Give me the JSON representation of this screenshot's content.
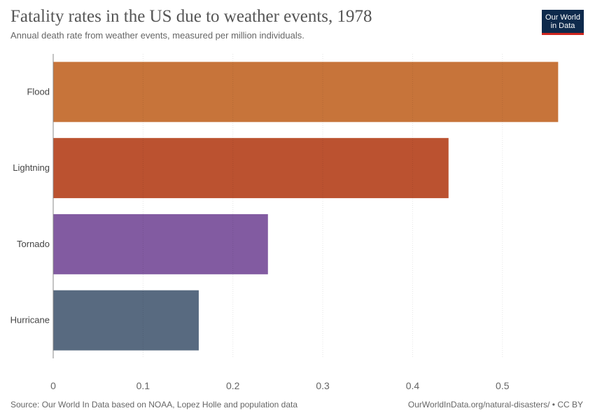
{
  "header": {
    "title": "Fatality rates in the US due to weather events, 1978",
    "subtitle": "Annual death rate from weather events, measured per million individuals."
  },
  "logo": {
    "line1": "Our World",
    "line2": "in Data",
    "bg_color": "#0e2a4c",
    "accent_color": "#ce261e"
  },
  "footer": {
    "source": "Source: Our World In Data based on NOAA, Lopez Holle and population data",
    "credit": "OurWorldInData.org/natural-disasters/ • CC BY"
  },
  "chart_data": {
    "type": "bar",
    "orientation": "horizontal",
    "categories": [
      "Flood",
      "Lightning",
      "Tornado",
      "Hurricane"
    ],
    "values": [
      0.562,
      0.44,
      0.239,
      0.162
    ],
    "colors": [
      "#c7743a",
      "#bb5230",
      "#825ba1",
      "#586a80"
    ],
    "xlim": [
      0,
      0.5625
    ],
    "xticks": [
      "0",
      "0.1",
      "0.2",
      "0.3",
      "0.4",
      "0.5"
    ],
    "xtick_values": [
      0,
      0.1,
      0.2,
      0.3,
      0.4,
      0.5
    ],
    "grid": true
  }
}
